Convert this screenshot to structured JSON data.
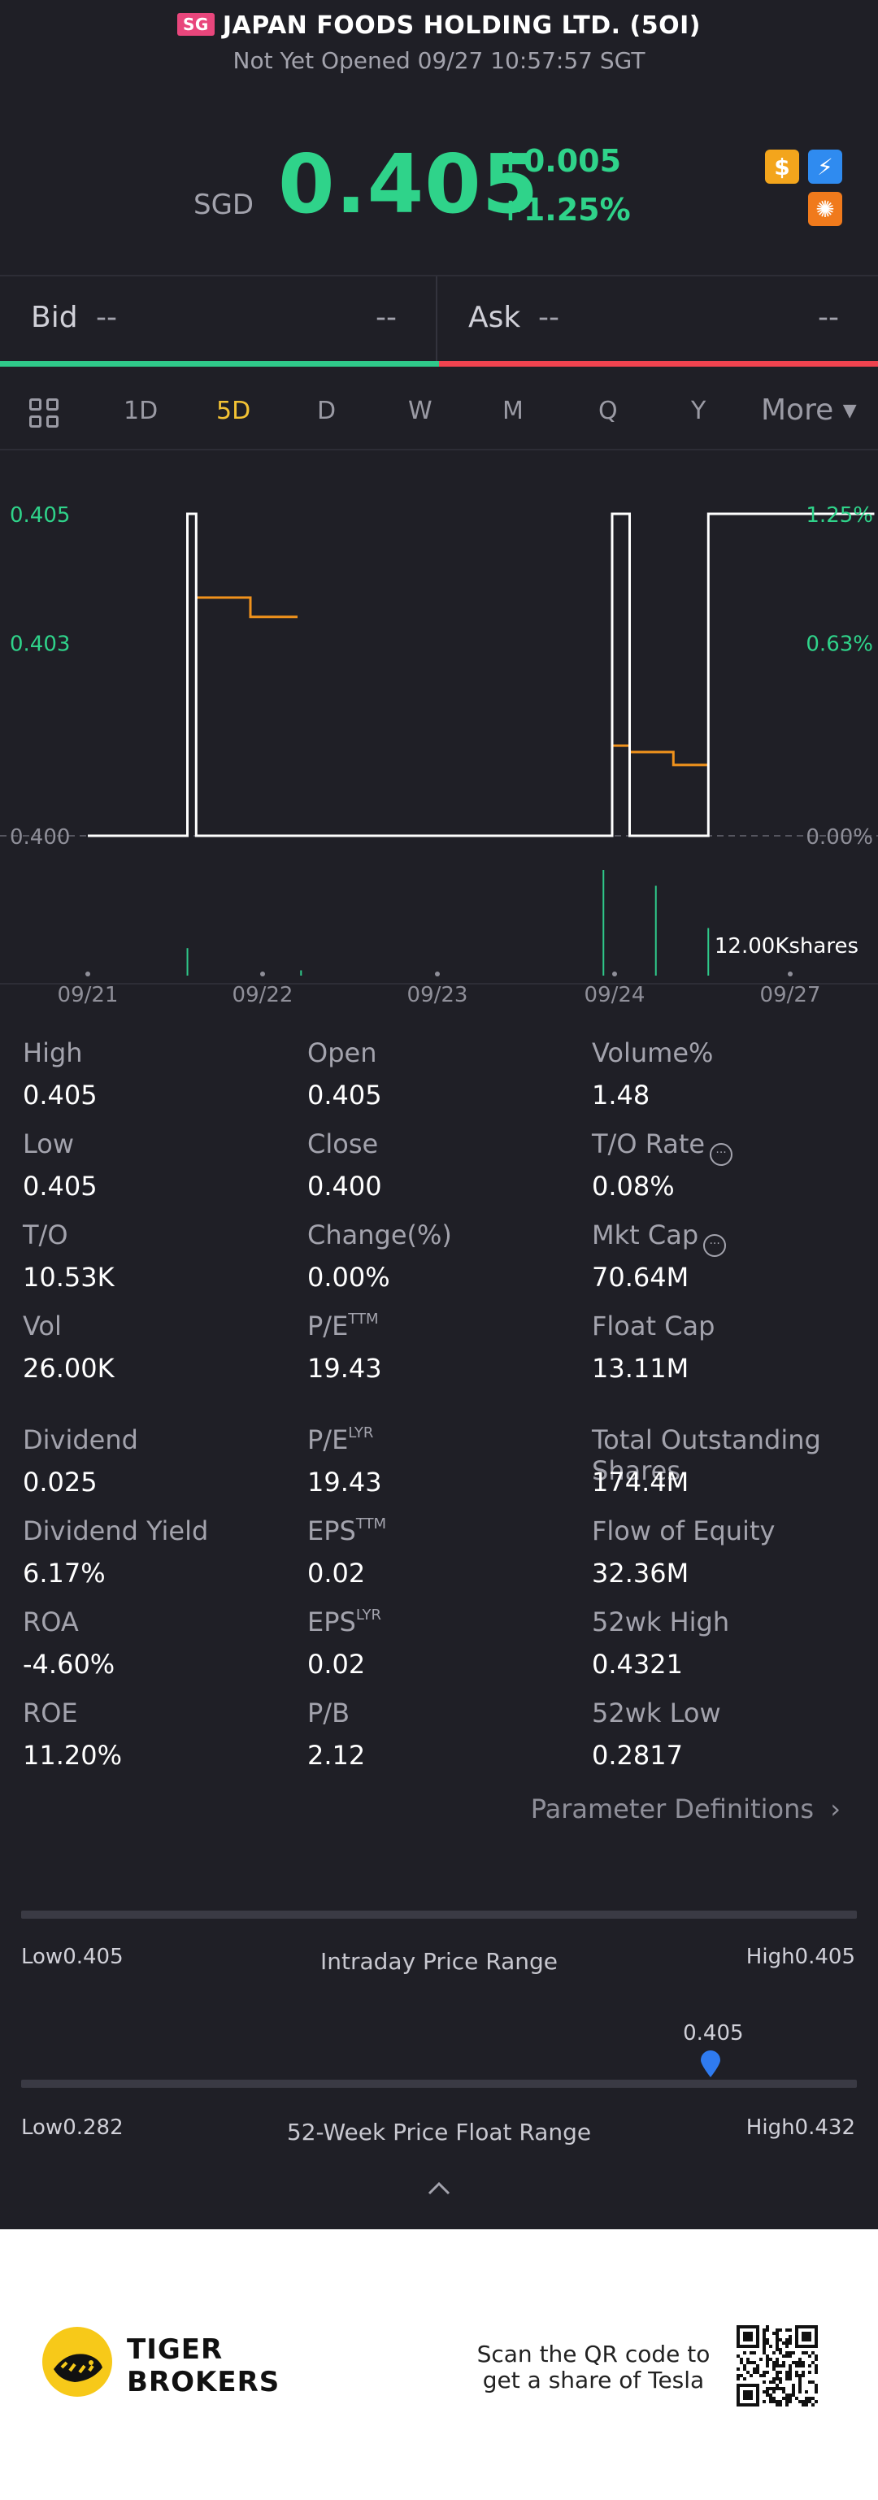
{
  "header": {
    "market_badge": "SG",
    "title": "JAPAN FOODS HOLDING LTD. (5OI)",
    "status": "Not Yet Opened 09/27 10:57:57 SGT"
  },
  "quote": {
    "currency": "SGD",
    "price": "0.405",
    "change": "+0.005",
    "change_pct": "+1.25%"
  },
  "icons": [
    "dollar-icon",
    "lightning-icon",
    "share-icon"
  ],
  "orderbook": {
    "bid_label": "Bid",
    "bid_price": "--",
    "bid_size": "--",
    "ask_label": "Ask",
    "ask_price": "--",
    "ask_size": "--"
  },
  "tabs": {
    "items": [
      "1D",
      "5D",
      "D",
      "W",
      "M",
      "Q",
      "Y"
    ],
    "active": "5D",
    "more": "More"
  },
  "chart_data": {
    "type": "line",
    "y_left_ticks": [
      "0.405",
      "0.403",
      "0.400"
    ],
    "y_right_ticks": [
      "1.25%",
      "0.63%",
      "0.00%"
    ],
    "x_ticks": [
      "09/21",
      "09/22",
      "09/23",
      "09/24",
      "09/27"
    ],
    "ylim": [
      0.4,
      0.405
    ],
    "volume_label": "12.00Kshares",
    "price_line": [
      {
        "day": "09/21",
        "t": 0.0,
        "y": 0.4
      },
      {
        "day": "09/21",
        "t": 0.57,
        "y": 0.4
      },
      {
        "day": "09/21",
        "t": 0.57,
        "y": 0.405
      },
      {
        "day": "09/21",
        "t": 0.62,
        "y": 0.405
      },
      {
        "day": "09/21",
        "t": 0.62,
        "y": 0.4
      },
      {
        "day": "09/23",
        "t": 0.22,
        "y": 0.4
      },
      {
        "day": "09/24",
        "t": 0.0,
        "y": 0.4
      },
      {
        "day": "09/24",
        "t": 0.0,
        "y": 0.405
      },
      {
        "day": "09/24",
        "t": 0.1,
        "y": 0.405
      },
      {
        "day": "09/24",
        "t": 0.1,
        "y": 0.4
      },
      {
        "day": "09/24",
        "t": 0.55,
        "y": 0.4
      },
      {
        "day": "09/24",
        "t": 0.55,
        "y": 0.405
      },
      {
        "day": "09/27",
        "t": 0.5,
        "y": 0.405
      }
    ],
    "avg_line": [
      {
        "seg": 1,
        "points": [
          [
            0.62,
            0.4037
          ],
          [
            0.93,
            0.4037
          ],
          [
            0.93,
            0.4034
          ],
          [
            1.2,
            0.4034
          ]
        ]
      },
      {
        "seg": 2,
        "points": [
          [
            3.0,
            0.4014
          ],
          [
            3.1,
            0.4014
          ],
          [
            3.1,
            0.4013
          ],
          [
            3.35,
            0.4013
          ],
          [
            3.35,
            0.4011
          ],
          [
            3.55,
            0.4011
          ]
        ]
      }
    ],
    "volume_bars": [
      {
        "t": 0.57,
        "v": 0.26
      },
      {
        "t": 1.22,
        "v": 0.05
      },
      {
        "t": 2.95,
        "v": 1.0
      },
      {
        "t": 3.25,
        "v": 0.85
      },
      {
        "t": 3.55,
        "v": 0.45
      }
    ]
  },
  "stats": [
    {
      "label": "High",
      "value": "0.405"
    },
    {
      "label": "Open",
      "value": "0.405"
    },
    {
      "label": "Volume%",
      "value": "1.48"
    },
    {
      "label": "Low",
      "value": "0.405"
    },
    {
      "label": "Close",
      "value": "0.400"
    },
    {
      "label": "T/O Rate",
      "value": "0.08%"
    },
    {
      "label": "T/O",
      "value": "10.53K"
    },
    {
      "label": "Change(%)",
      "value": "0.00%"
    },
    {
      "label": "Mkt Cap",
      "value": "70.64M"
    },
    {
      "label": "Vol",
      "value": "26.00K"
    },
    {
      "label": "P/E",
      "sup": "TTM",
      "value": "19.43"
    },
    {
      "label": "Float Cap",
      "value": "13.11M"
    },
    {
      "label": "Dividend",
      "value": "0.025"
    },
    {
      "label": "P/E",
      "sup": "LYR",
      "value": "19.43"
    },
    {
      "label": "Total Outstanding Shares",
      "value": "174.4M"
    },
    {
      "label": "Dividend Yield",
      "value": "6.17%"
    },
    {
      "label": "EPS",
      "sup": "TTM",
      "value": "0.02"
    },
    {
      "label": "Flow of Equity",
      "value": "32.36M"
    },
    {
      "label": "ROA",
      "value": "-4.60%"
    },
    {
      "label": "EPS",
      "sup": "LYR",
      "value": "0.02"
    },
    {
      "label": "52wk High",
      "value": "0.4321"
    },
    {
      "label": "ROE",
      "value": "11.20%"
    },
    {
      "label": "P/B",
      "value": "2.12"
    },
    {
      "label": "52wk Low",
      "value": "0.2817"
    }
  ],
  "param_definitions": "Parameter Definitions",
  "intraday_range": {
    "low": "Low0.405",
    "high": "High0.405",
    "title": "Intraday Price Range"
  },
  "week52_range": {
    "marker_value": "0.405",
    "marker_fraction": 0.825,
    "low": "Low0.282",
    "high": "High0.432",
    "title": "52-Week Price Float Range"
  },
  "footer": {
    "brand_line1": "TIGER",
    "brand_line2": "BROKERS",
    "scan_text": "Scan the QR code to get a share of Tesla"
  },
  "colors": {
    "up": "#2fd38a",
    "down": "#f0434f",
    "active_tab": "#f3c234",
    "price_line": "#ffffff",
    "avg_line": "#f0921c",
    "volume": "#2fc98a",
    "marker": "#2f7bf0"
  }
}
